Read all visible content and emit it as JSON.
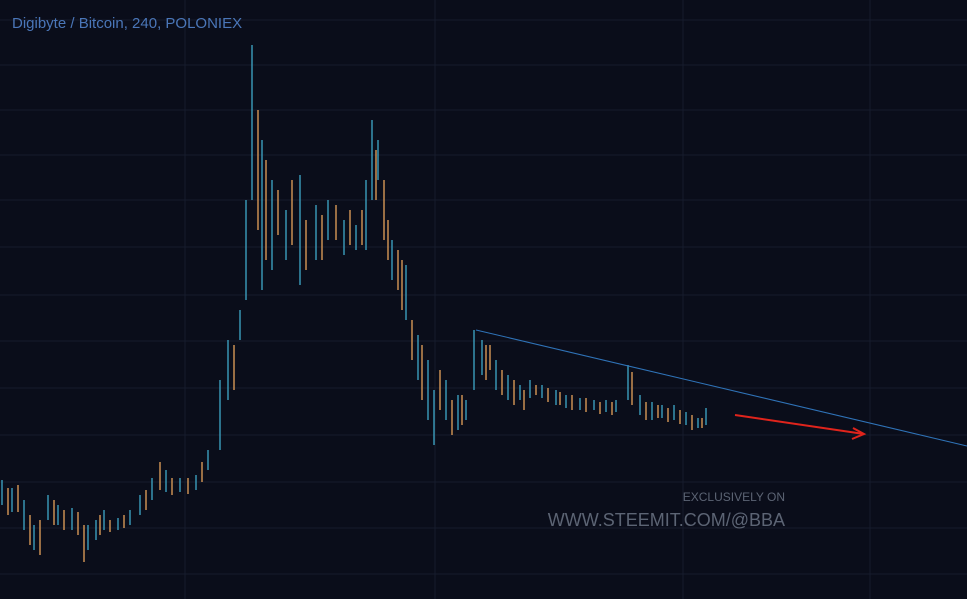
{
  "header": {
    "title": "Digibyte / Bitcoin, 240, POLONIEX"
  },
  "watermark": {
    "line1": "EXCLUSIVELY ON",
    "line2": "WWW.STEEMIT.COM/@BBA"
  }
}
